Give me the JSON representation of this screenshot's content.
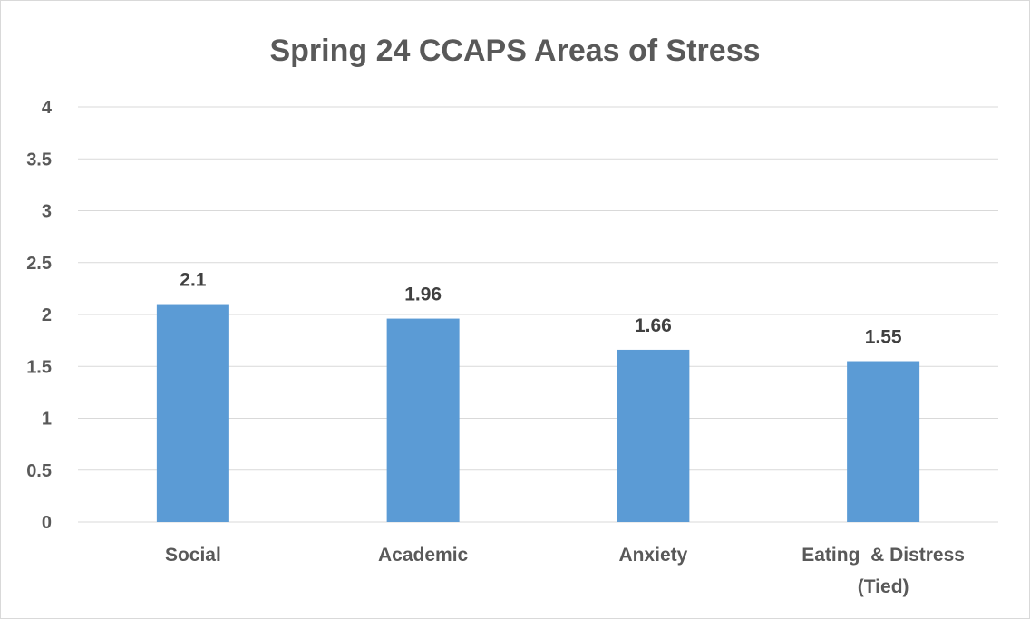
{
  "chart_data": {
    "type": "bar",
    "title": "Spring 24 CCAPS Areas of Stress",
    "xlabel": "",
    "ylabel": "",
    "categories": [
      [
        "Social"
      ],
      [
        "Academic"
      ],
      [
        "Anxiety"
      ],
      [
        "Eating  & Distress",
        "(Tied)"
      ]
    ],
    "values": [
      2.1,
      1.96,
      1.66,
      1.55
    ],
    "data_labels": [
      "2.1",
      "1.96",
      "1.66",
      "1.55"
    ],
    "ylim": [
      0,
      4
    ],
    "yticks": [
      "0",
      "0.5",
      "1",
      "1.5",
      "2",
      "2.5",
      "3",
      "3.5",
      "4"
    ],
    "grid": true,
    "legend": "none",
    "bar_color": "#5b9bd5"
  }
}
